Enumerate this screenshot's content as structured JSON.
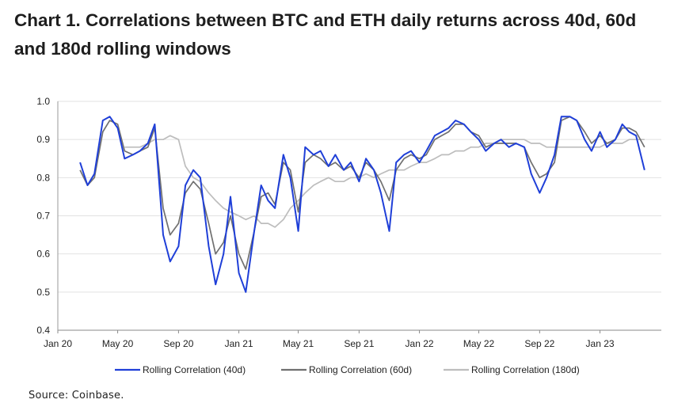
{
  "title": "Chart 1. Correlations between BTC and ETH daily returns across 40d, 60d and 180d rolling windows",
  "source": "Source: Coinbase.",
  "chart_data": {
    "type": "line",
    "title": "Chart 1. Correlations between BTC and ETH daily returns across 40d, 60d and 180d rolling windows",
    "xlabel": "",
    "ylabel": "",
    "ylim": [
      0.4,
      1.0
    ],
    "yticks": [
      "0.4",
      "0.5",
      "0.6",
      "0.7",
      "0.8",
      "0.9",
      "1.0"
    ],
    "xticks": [
      "Jan 20",
      "May 20",
      "Sep 20",
      "Jan 21",
      "May 21",
      "Sep 21",
      "Jan 22",
      "May 22",
      "Sep 22",
      "Jan 23"
    ],
    "grid": "horizontal",
    "legend_position": "bottom",
    "x": [
      "2020-02-15",
      "2020-03-01",
      "2020-03-15",
      "2020-04-01",
      "2020-04-15",
      "2020-05-01",
      "2020-05-15",
      "2020-06-01",
      "2020-06-15",
      "2020-07-01",
      "2020-07-15",
      "2020-08-01",
      "2020-08-15",
      "2020-09-01",
      "2020-09-15",
      "2020-10-01",
      "2020-10-15",
      "2020-11-01",
      "2020-11-15",
      "2020-12-01",
      "2020-12-15",
      "2021-01-01",
      "2021-01-15",
      "2021-02-01",
      "2021-02-15",
      "2021-03-01",
      "2021-03-15",
      "2021-04-01",
      "2021-04-15",
      "2021-05-01",
      "2021-05-15",
      "2021-06-01",
      "2021-06-15",
      "2021-07-01",
      "2021-07-15",
      "2021-08-01",
      "2021-08-15",
      "2021-09-01",
      "2021-09-15",
      "2021-10-01",
      "2021-10-15",
      "2021-11-01",
      "2021-11-15",
      "2021-12-01",
      "2021-12-15",
      "2022-01-01",
      "2022-01-15",
      "2022-02-01",
      "2022-02-15",
      "2022-03-01",
      "2022-03-15",
      "2022-04-01",
      "2022-04-15",
      "2022-05-01",
      "2022-05-15",
      "2022-06-01",
      "2022-06-15",
      "2022-07-01",
      "2022-07-15",
      "2022-08-01",
      "2022-08-15",
      "2022-09-01",
      "2022-09-15",
      "2022-10-01",
      "2022-10-15",
      "2022-11-01",
      "2022-11-15",
      "2022-12-01",
      "2022-12-15",
      "2023-01-01",
      "2023-01-15",
      "2023-02-01",
      "2023-02-15",
      "2023-03-01",
      "2023-03-15",
      "2023-04-01"
    ],
    "series": [
      {
        "name": "Rolling Correlation (40d)",
        "color": "#1f3fd8",
        "values": [
          0.84,
          0.78,
          0.81,
          0.95,
          0.96,
          0.93,
          0.85,
          0.86,
          0.87,
          0.89,
          0.94,
          0.65,
          0.58,
          0.62,
          0.78,
          0.82,
          0.8,
          0.62,
          0.52,
          0.6,
          0.75,
          0.55,
          0.5,
          0.66,
          0.78,
          0.74,
          0.72,
          0.86,
          0.8,
          0.66,
          0.88,
          0.86,
          0.87,
          0.83,
          0.86,
          0.82,
          0.84,
          0.79,
          0.85,
          0.82,
          0.76,
          0.66,
          0.84,
          0.86,
          0.87,
          0.84,
          0.87,
          0.91,
          0.92,
          0.93,
          0.95,
          0.94,
          0.92,
          0.9,
          0.87,
          0.89,
          0.9,
          0.88,
          0.89,
          0.88,
          0.81,
          0.76,
          0.8,
          0.86,
          0.96,
          0.96,
          0.95,
          0.9,
          0.87,
          0.92,
          0.88,
          0.9,
          0.94,
          0.92,
          0.91,
          0.82
        ]
      },
      {
        "name": "Rolling Correlation (60d)",
        "color": "#707070",
        "values": [
          0.82,
          0.78,
          0.8,
          0.92,
          0.95,
          0.94,
          0.87,
          0.86,
          0.87,
          0.88,
          0.93,
          0.72,
          0.65,
          0.68,
          0.76,
          0.79,
          0.77,
          0.68,
          0.6,
          0.63,
          0.7,
          0.6,
          0.56,
          0.66,
          0.75,
          0.76,
          0.73,
          0.84,
          0.82,
          0.71,
          0.84,
          0.86,
          0.85,
          0.83,
          0.84,
          0.82,
          0.83,
          0.8,
          0.84,
          0.82,
          0.79,
          0.74,
          0.82,
          0.85,
          0.86,
          0.85,
          0.86,
          0.9,
          0.91,
          0.92,
          0.94,
          0.94,
          0.92,
          0.91,
          0.88,
          0.89,
          0.89,
          0.89,
          0.89,
          0.88,
          0.84,
          0.8,
          0.81,
          0.84,
          0.95,
          0.96,
          0.95,
          0.92,
          0.89,
          0.91,
          0.89,
          0.9,
          0.93,
          0.93,
          0.92,
          0.88
        ]
      },
      {
        "name": "Rolling Correlation (180d)",
        "color": "#bdbdbd",
        "values": [
          null,
          null,
          null,
          null,
          null,
          null,
          0.88,
          0.88,
          0.88,
          0.89,
          0.9,
          0.9,
          0.91,
          0.9,
          0.83,
          0.8,
          0.79,
          0.76,
          0.74,
          0.72,
          0.71,
          0.7,
          0.69,
          0.7,
          0.68,
          0.68,
          0.67,
          0.69,
          0.72,
          0.74,
          0.76,
          0.78,
          0.79,
          0.8,
          0.79,
          0.79,
          0.8,
          0.8,
          0.81,
          0.8,
          0.81,
          0.82,
          0.82,
          0.82,
          0.83,
          0.84,
          0.84,
          0.85,
          0.86,
          0.86,
          0.87,
          0.87,
          0.88,
          0.88,
          0.89,
          0.89,
          0.9,
          0.9,
          0.9,
          0.9,
          0.89,
          0.89,
          0.88,
          0.88,
          0.88,
          0.88,
          0.88,
          0.88,
          0.88,
          0.88,
          0.89,
          0.89,
          0.89,
          0.9,
          0.9,
          0.9
        ]
      }
    ]
  }
}
